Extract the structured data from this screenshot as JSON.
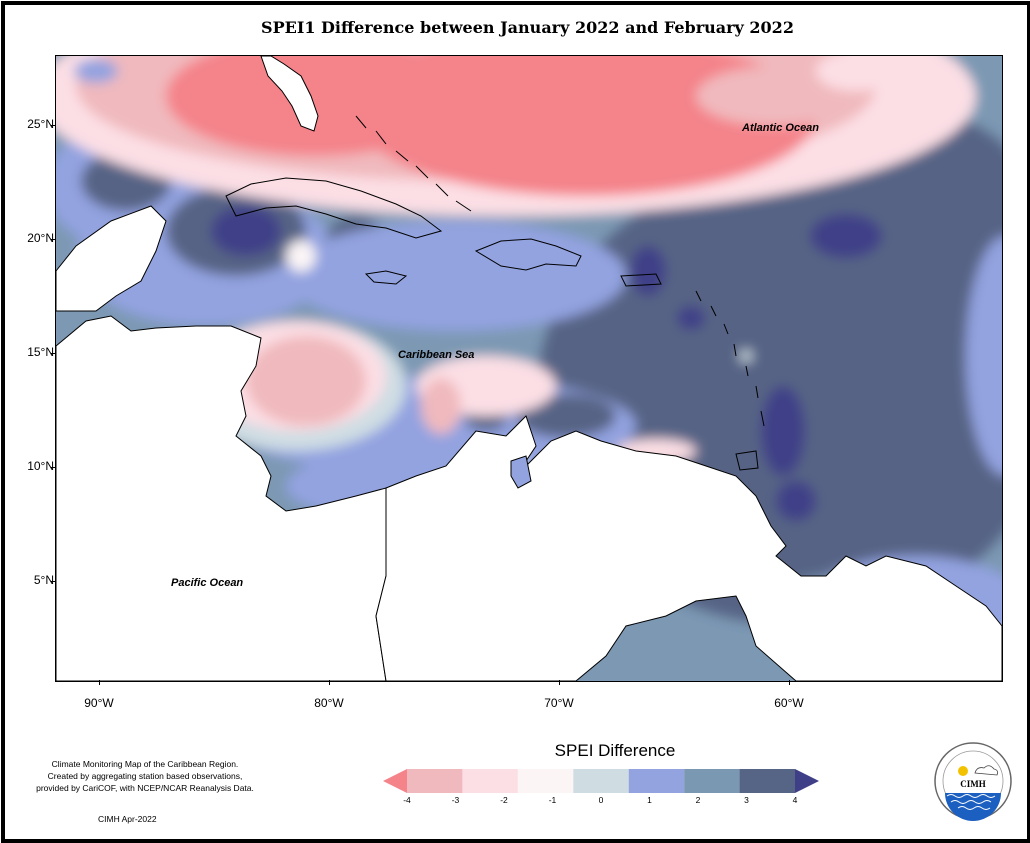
{
  "title": "SPEI1 Difference between January 2022 and February 2022",
  "map": {
    "y_ticks": [
      "25°N",
      "20°N",
      "15°N",
      "10°N",
      "5°N"
    ],
    "x_ticks": [
      "90°W",
      "80°W",
      "70°W",
      "60°W"
    ],
    "labels": {
      "atlantic": "Atlantic Ocean",
      "caribbean": "Caribbean Sea",
      "pacific": "Pacific Ocean"
    }
  },
  "footer": {
    "note_lines": [
      "Climate Monitoring Map of the Caribbean Region.",
      "Created by aggregating station based observations,",
      "provided by CariCOF, with NCEP/NCAR Reanalysis Data."
    ],
    "credit": "CIMH Apr-2022",
    "logo_text": "CIMH"
  },
  "legend": {
    "title": "SPEI Difference",
    "ticks": [
      "-4",
      "-3",
      "-2",
      "-1",
      "0",
      "1",
      "2",
      "3",
      "4"
    ],
    "colors": [
      "#f4838a",
      "#f0b9bd",
      "#fcdfe5",
      "#fbf5f6",
      "#cfdde3",
      "#93a3e0",
      "#7b98b3",
      "#566485",
      "#3f3f88"
    ]
  }
}
